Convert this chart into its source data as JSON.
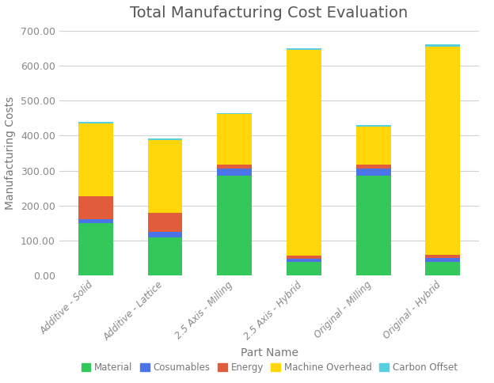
{
  "title": "Total Manufacturing Cost Evaluation",
  "xlabel": "Part Name",
  "ylabel": "Manufacturing Costs",
  "categories": [
    "Additive - Solid",
    "Additive - Lattice",
    "2.5 Axis - Milling",
    "2.5 Axis - Hybrid",
    "Original - Milling",
    "Original - Hybrid"
  ],
  "series": {
    "Material": [
      150,
      110,
      285,
      40,
      285,
      40
    ],
    "Cosumables": [
      12,
      15,
      22,
      8,
      22,
      10
    ],
    "Energy": [
      65,
      55,
      10,
      10,
      10,
      10
    ],
    "Machine Overhead": [
      208,
      207,
      145,
      588,
      108,
      595
    ],
    "Carbon Offset": [
      5,
      5,
      3,
      3,
      5,
      5
    ]
  },
  "colors": {
    "Material": "#34c759",
    "Cosumables": "#4b74e8",
    "Energy": "#e05c3a",
    "Machine Overhead": "#ffd60a",
    "Carbon Offset": "#56cfe1"
  },
  "ylim": [
    0,
    700
  ],
  "yticks": [
    0,
    100,
    200,
    300,
    400,
    500,
    600,
    700
  ],
  "background_color": "#ffffff",
  "grid_color": "#d0d0d0",
  "title_color": "#555555",
  "label_color": "#777777",
  "tick_color": "#888888",
  "bar_width": 0.5
}
